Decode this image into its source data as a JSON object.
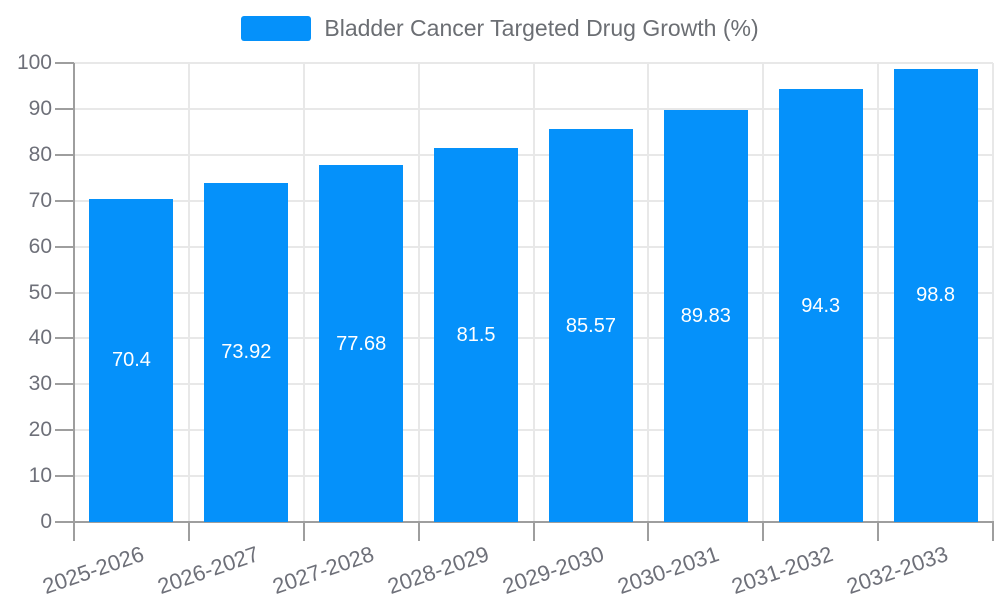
{
  "legend": {
    "label": "Bladder Cancer Targeted Drug Growth (%)"
  },
  "chart_data": {
    "type": "bar",
    "title": "Bladder Cancer Targeted Drug Growth (%)",
    "categories": [
      "2025-2026",
      "2026-2027",
      "2027-2028",
      "2028-2029",
      "2029-2030",
      "2030-2031",
      "2031-2032",
      "2032-2033"
    ],
    "values": [
      70.4,
      73.92,
      77.68,
      81.5,
      85.57,
      89.83,
      94.3,
      98.8
    ],
    "value_labels": [
      "70.4",
      "73.92",
      "77.68",
      "81.5",
      "85.57",
      "89.83",
      "94.3",
      "98.8"
    ],
    "xlabel": "",
    "ylabel": "",
    "ylim": [
      0,
      100
    ],
    "ytick_step": 10,
    "grid": true,
    "legend_position": "top",
    "value_label_position": "inside-middle",
    "colors": {
      "bar": "#0591FA",
      "value_label": "#FFFFFF",
      "axis_line": "#9E9E9E",
      "grid_line": "#E8E8E8",
      "axis_text": "#6E7079",
      "legend_text": "#6B6E73",
      "background": "#FFFFFF"
    }
  }
}
